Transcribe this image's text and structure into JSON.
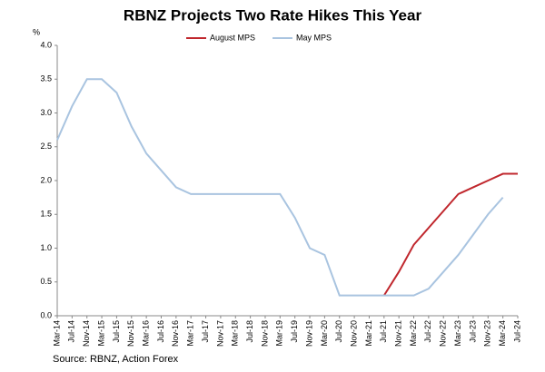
{
  "chart_data": {
    "type": "line",
    "title": "RBNZ Projects Two Rate Hikes This Year",
    "y_label": "%",
    "source": "Source: RBNZ, Action Forex",
    "categories": [
      "Mar-14",
      "Jul-14",
      "Nov-14",
      "Mar-15",
      "Jul-15",
      "Nov-15",
      "Mar-16",
      "Jul-16",
      "Nov-16",
      "Mar-17",
      "Jul-17",
      "Nov-17",
      "Mar-18",
      "Jul-18",
      "Nov-18",
      "Mar-19",
      "Jul-19",
      "Nov-19",
      "Mar-20",
      "Jul-20",
      "Nov-20",
      "Mar-21",
      "Jul-21",
      "Nov-21",
      "Mar-22",
      "Jul-22",
      "Nov-22",
      "Mar-23",
      "Jul-23",
      "Nov-23",
      "Mar-24",
      "Jul-24"
    ],
    "series": [
      {
        "name": "August MPS",
        "color": "#c0272d",
        "values": [
          null,
          null,
          null,
          null,
          null,
          null,
          null,
          null,
          null,
          null,
          null,
          null,
          null,
          null,
          null,
          null,
          null,
          null,
          null,
          null,
          null,
          null,
          0.3,
          0.65,
          1.05,
          1.3,
          1.55,
          1.8,
          1.9,
          2.0,
          2.1,
          2.1
        ]
      },
      {
        "name": "May MPS",
        "color": "#a9c4e0",
        "values": [
          2.6,
          3.1,
          3.5,
          3.5,
          3.3,
          2.8,
          2.4,
          2.15,
          1.9,
          1.8,
          1.8,
          1.8,
          1.8,
          1.8,
          1.8,
          1.8,
          1.45,
          1.0,
          0.9,
          0.3,
          0.3,
          0.3,
          0.3,
          0.3,
          0.3,
          0.4,
          0.65,
          0.9,
          1.2,
          1.5,
          1.75,
          null
        ]
      }
    ],
    "ylim": [
      0,
      4
    ],
    "yticks": [
      {
        "value": 0,
        "label": "0.0"
      },
      {
        "value": 0.5,
        "label": "0.5"
      },
      {
        "value": 1,
        "label": "1.0"
      },
      {
        "value": 1.5,
        "label": "1.5"
      },
      {
        "value": 2,
        "label": "2.0"
      },
      {
        "value": 2.5,
        "label": "2.5"
      },
      {
        "value": 3,
        "label": "3.0"
      },
      {
        "value": 3.5,
        "label": "3.5"
      },
      {
        "value": 4,
        "label": "4.0"
      }
    ],
    "grid": false
  }
}
